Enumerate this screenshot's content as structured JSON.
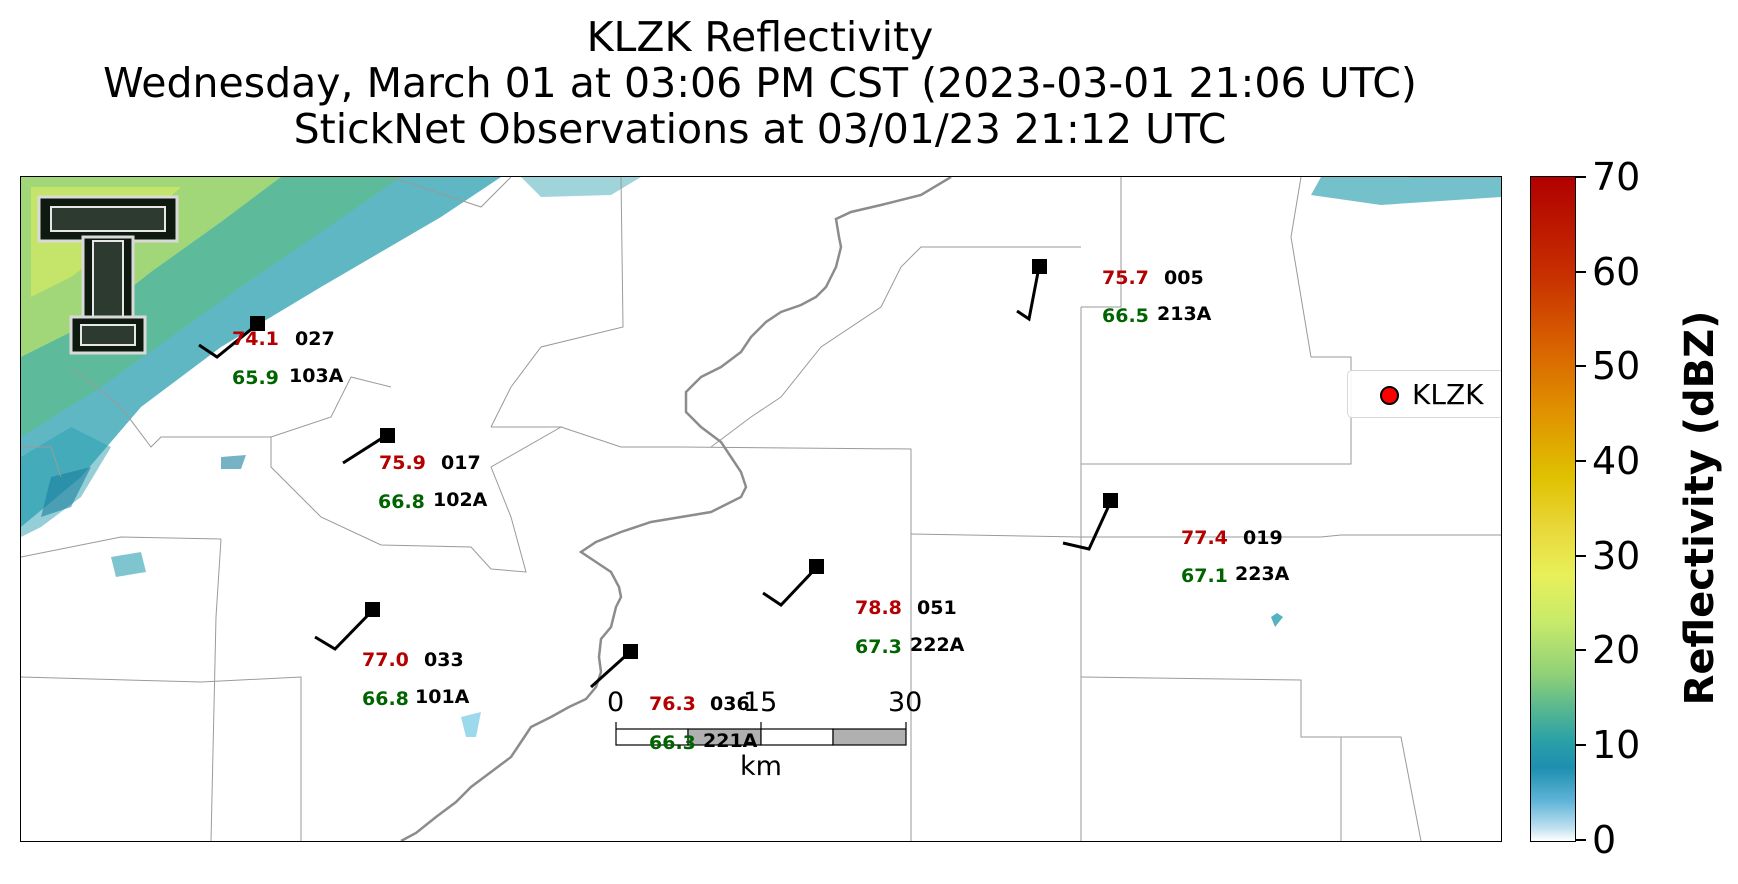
{
  "title": {
    "line1": "KLZK Reflectivity",
    "line2": "Wednesday, March 01 at 03:06 PM CST (2023-03-01 21:06 UTC)",
    "line3": "StickNet Observations at 03/01/23 21:12 UTC"
  },
  "legend": {
    "label": "KLZK",
    "marker_color": "#ff0000"
  },
  "stations": [
    {
      "id": "103A",
      "temp": "74.1",
      "dew": "65.9",
      "dir": "027"
    },
    {
      "id": "102A",
      "temp": "75.9",
      "dew": "66.8",
      "dir": "017"
    },
    {
      "id": "101A",
      "temp": "77.0",
      "dew": "66.8",
      "dir": "033"
    },
    {
      "id": "221A",
      "temp": "76.3",
      "dew": "66.3",
      "dir": "036"
    },
    {
      "id": "222A",
      "temp": "78.8",
      "dew": "67.3",
      "dir": "051"
    },
    {
      "id": "223A",
      "temp": "77.4",
      "dew": "67.1",
      "dir": "019"
    },
    {
      "id": "213A",
      "temp": "75.7",
      "dew": "66.5",
      "dir": "005"
    }
  ],
  "scale_bar": {
    "labels": [
      "0",
      "15",
      "30"
    ],
    "unit": "km"
  },
  "colorbar": {
    "title": "Reflectivity (dBZ)",
    "ticks": [
      "0",
      "10",
      "20",
      "30",
      "40",
      "50",
      "60",
      "70"
    ],
    "range": [
      0,
      70
    ]
  },
  "colors": {
    "temp": "#b40000",
    "dew": "#006400",
    "river": "#8c8c8c",
    "county": "#999999"
  }
}
